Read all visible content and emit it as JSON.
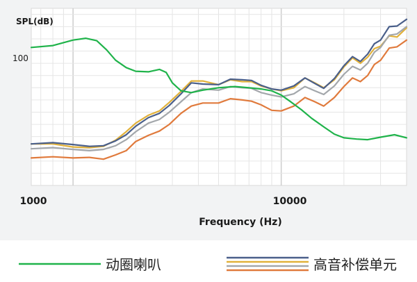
{
  "chart_data": {
    "type": "line",
    "x_scale": "log",
    "xlim": [
      630,
      40000
    ],
    "ylim": [
      78,
      107
    ],
    "grid": true,
    "legend_position": "bottom",
    "ylabel": "SPL(dB)",
    "xlabel": "Frequency (Hz)",
    "y_ticks": [
      {
        "value": 100,
        "label": "100"
      }
    ],
    "x_ticks": [
      {
        "value": 1000,
        "label": "1000"
      },
      {
        "value": 10000,
        "label": "10000"
      }
    ],
    "series": [
      {
        "name": "动圈喇叭",
        "legend_group": "动圈喇叭",
        "color": "#1fb34a",
        "x": [
          630,
          800,
          1000,
          1150,
          1300,
          1450,
          1600,
          1800,
          2000,
          2300,
          2600,
          2800,
          3000,
          3300,
          3700,
          4200,
          5000,
          6000,
          7000,
          8000,
          9000,
          10000,
          11000,
          12500,
          14000,
          16000,
          18000,
          20000,
          23000,
          26000,
          30000,
          35000,
          40000
        ],
        "y": [
          100.6,
          100.9,
          101.8,
          102.1,
          101.7,
          100.2,
          98.5,
          97.3,
          96.7,
          96.6,
          97.0,
          96.5,
          94.8,
          93.5,
          93.2,
          93.6,
          94.0,
          94.2,
          94.0,
          93.8,
          93.5,
          92.8,
          91.8,
          90.4,
          89.0,
          87.6,
          86.4,
          85.8,
          85.6,
          85.5,
          85.9,
          86.3,
          85.8
        ]
      },
      {
        "name": "",
        "legend_group": "高音补偿单元",
        "color": "#e1b13a",
        "x": [
          630,
          800,
          1000,
          1200,
          1400,
          1600,
          1800,
          2000,
          2300,
          2600,
          2900,
          3300,
          3700,
          4200,
          5000,
          5700,
          6500,
          7200,
          8000,
          9000,
          10000,
          11500,
          13000,
          14500,
          16000,
          18000,
          20000,
          22000,
          24000,
          26000,
          28000,
          30000,
          33000,
          36000,
          40000
        ],
        "y": [
          84.8,
          84.8,
          84.3,
          84.2,
          84.4,
          85.4,
          86.8,
          88.2,
          89.5,
          90.2,
          91.6,
          93.4,
          95.1,
          95.1,
          94.5,
          95.3,
          95.0,
          95.0,
          94.3,
          93.8,
          93.5,
          94.0,
          95.6,
          94.8,
          94.0,
          95.3,
          97.4,
          98.9,
          98.0,
          99.0,
          100.4,
          100.8,
          102.5,
          102.3,
          103.8
        ]
      },
      {
        "name": "",
        "legend_group": "高音补偿单元",
        "color": "#4a5f8a",
        "x": [
          630,
          800,
          1000,
          1200,
          1400,
          1600,
          1800,
          2000,
          2300,
          2600,
          2900,
          3300,
          3700,
          4200,
          5000,
          5700,
          6500,
          7200,
          8000,
          9000,
          10000,
          11500,
          13000,
          14500,
          16000,
          18000,
          20000,
          22000,
          24000,
          26000,
          28000,
          30000,
          33000,
          36000,
          40000
        ],
        "y": [
          84.8,
          85.0,
          84.7,
          84.4,
          84.5,
          85.3,
          86.3,
          87.7,
          89.1,
          89.8,
          91.1,
          93.0,
          94.8,
          94.6,
          94.5,
          95.4,
          95.3,
          95.2,
          94.4,
          93.8,
          93.6,
          94.3,
          95.6,
          94.7,
          93.9,
          95.5,
          97.6,
          99.1,
          98.3,
          99.5,
          101.2,
          101.8,
          104.0,
          104.1,
          105.2
        ]
      },
      {
        "name": "",
        "legend_group": "高音补偿单元",
        "color": "#a3a7ab",
        "x": [
          630,
          800,
          1000,
          1200,
          1400,
          1600,
          1800,
          2000,
          2300,
          2600,
          2900,
          3300,
          3700,
          4200,
          5000,
          5700,
          6500,
          7200,
          8000,
          9000,
          10000,
          11500,
          13000,
          14500,
          16000,
          18000,
          20000,
          22000,
          24000,
          26000,
          28000,
          30000,
          33000,
          36000,
          40000
        ],
        "y": [
          84.0,
          84.2,
          83.9,
          83.7,
          83.9,
          84.5,
          85.5,
          86.8,
          88.2,
          88.8,
          90.0,
          91.7,
          93.2,
          93.8,
          93.6,
          94.2,
          94.0,
          93.9,
          93.2,
          92.8,
          92.5,
          93.0,
          94.2,
          93.5,
          92.9,
          94.3,
          96.2,
          97.5,
          96.9,
          98.0,
          99.8,
          100.6,
          102.6,
          102.8,
          104.0
        ]
      },
      {
        "name": "",
        "legend_group": "高音补偿单元",
        "color": "#e07a3c",
        "x": [
          630,
          800,
          1000,
          1200,
          1400,
          1600,
          1800,
          2000,
          2300,
          2600,
          2900,
          3300,
          3700,
          4200,
          5000,
          5700,
          6500,
          7200,
          8000,
          9000,
          10000,
          11500,
          13000,
          14500,
          16000,
          18000,
          20000,
          22000,
          24000,
          26000,
          28000,
          30000,
          33000,
          36000,
          40000
        ],
        "y": [
          82.5,
          82.7,
          82.5,
          82.6,
          82.3,
          83.0,
          83.7,
          85.2,
          86.2,
          86.9,
          88.0,
          89.8,
          91.0,
          91.5,
          91.5,
          92.2,
          92.0,
          91.8,
          91.2,
          90.3,
          90.2,
          91.0,
          92.4,
          91.7,
          91.0,
          92.4,
          94.2,
          95.6,
          95.0,
          96.0,
          97.8,
          98.5,
          100.5,
          100.7,
          101.8
        ]
      }
    ]
  },
  "legend": {
    "woofer_label": "动圈喇叭",
    "tweeter_label": "高音补偿单元",
    "woofer_color": "#1fb34a",
    "tweeter_colors": [
      "#4a5f8a",
      "#e1b13a",
      "#a3a7ab",
      "#e07a3c"
    ]
  }
}
